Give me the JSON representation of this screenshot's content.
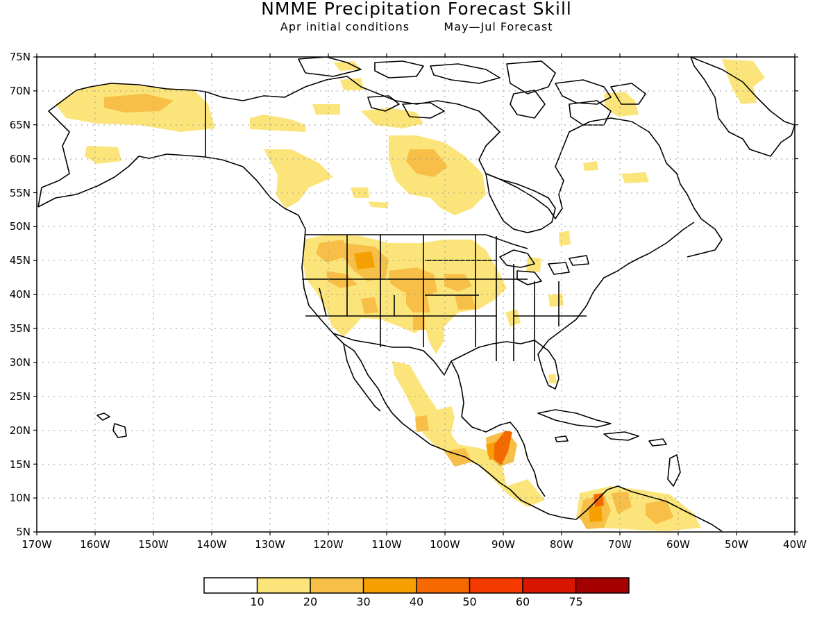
{
  "title": "NMME Precipitation Forecast Skill",
  "subtitle_left": "Apr initial conditions",
  "subtitle_right": "May—Jul Forecast",
  "map": {
    "lon_range": [
      -170,
      -40
    ],
    "lat_range": [
      5,
      75
    ],
    "lat_ticks": [
      "75N",
      "70N",
      "65N",
      "60N",
      "55N",
      "50N",
      "45N",
      "40N",
      "35N",
      "30N",
      "25N",
      "20N",
      "15N",
      "10N",
      "5N"
    ],
    "lon_ticks": [
      "170W",
      "160W",
      "150W",
      "140W",
      "130W",
      "120W",
      "110W",
      "100W",
      "90W",
      "80W",
      "70W",
      "60W",
      "50W",
      "40W"
    ],
    "grid": "dotted"
  },
  "colorbar": {
    "colors": [
      "#ffffff",
      "#fbe57a",
      "#f7bf48",
      "#f5a000",
      "#f56a00",
      "#f53a00",
      "#d81500",
      "#a50000"
    ],
    "labels": [
      "10",
      "20",
      "30",
      "40",
      "50",
      "60",
      "75"
    ]
  }
}
